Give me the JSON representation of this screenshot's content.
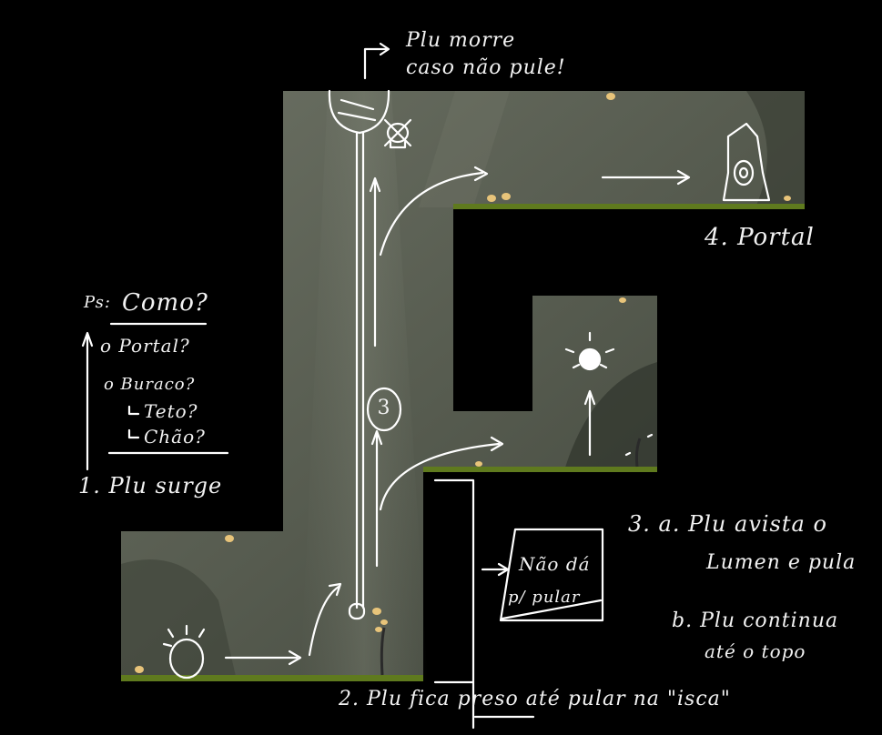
{
  "annotations": {
    "plu_dies_line1": "Plu morre",
    "plu_dies_line2": "caso não pule!",
    "portal_step": "4. Portal",
    "ps_label": "Ps:",
    "ps_question": "Como?",
    "ps_portal": "o Portal?",
    "ps_hole": "o Buraco?",
    "ps_ceiling": "Teto?",
    "ps_floor": "Chão?",
    "step1": "1. Plu surge",
    "step3a_line1": "3. a. Plu avista o",
    "step3a_line2": "Lumen e pula",
    "step3b_line1": "b. Plu continua",
    "step3b_line2": "até o topo",
    "cant_jump_line1": "Não dá",
    "cant_jump_line2": "p/ pular",
    "step2": "2. Plu fica preso até pular na \"isca\"",
    "step3_circle": "3"
  },
  "colors": {
    "background": "#000000",
    "cave_fill": "#50554a",
    "cave_light": "#6a6f62",
    "grass": "#5f7a1e",
    "sketch": "#ffffff",
    "mushroom": "#e8c47a"
  }
}
